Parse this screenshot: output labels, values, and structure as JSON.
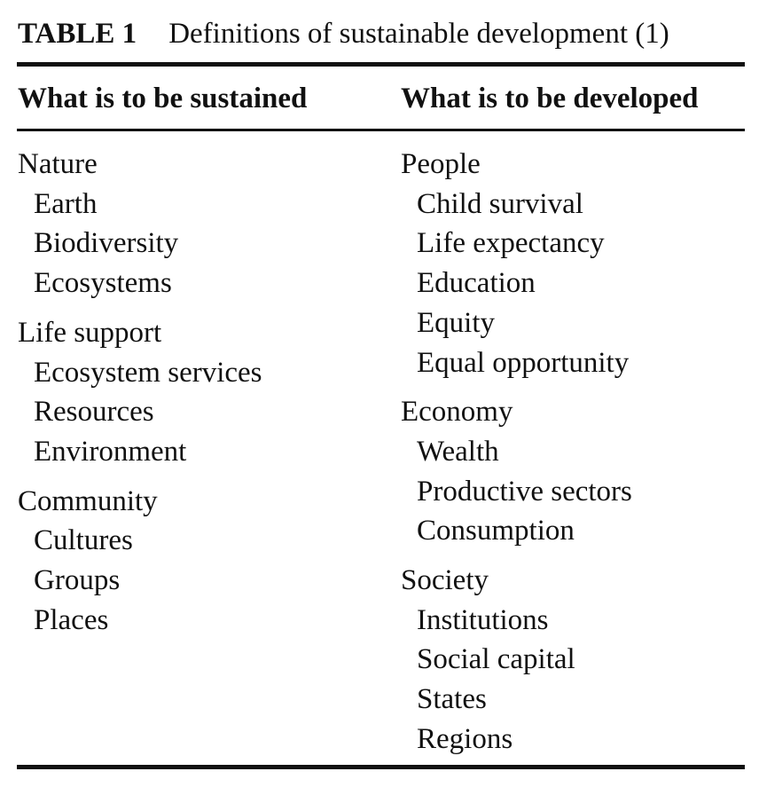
{
  "table": {
    "label": "TABLE 1",
    "caption": "Definitions of sustainable development (1)",
    "headers": [
      "What is to be sustained",
      "What is to be developed"
    ],
    "sustained": [
      {
        "heading": "Nature",
        "items": [
          "Earth",
          "Biodiversity",
          "Ecosystems"
        ]
      },
      {
        "heading": "Life support",
        "items": [
          "Ecosystem services",
          "Resources",
          "Environment"
        ]
      },
      {
        "heading": "Community",
        "items": [
          "Cultures",
          "Groups",
          "Places"
        ]
      }
    ],
    "developed": [
      {
        "heading": "People",
        "items": [
          "Child survival",
          "Life expectancy",
          "Education",
          "Equity",
          "Equal opportunity"
        ]
      },
      {
        "heading": "Economy",
        "items": [
          "Wealth",
          "Productive sectors",
          "Consumption"
        ]
      },
      {
        "heading": "Society",
        "items": [
          "Institutions",
          "Social capital",
          "States",
          "Regions"
        ]
      }
    ]
  }
}
